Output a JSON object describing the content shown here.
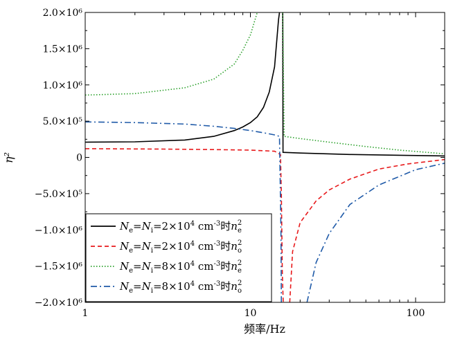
{
  "chart_data": {
    "type": "line",
    "xlabel": "频率/Hz",
    "ylabel": "η²",
    "xscale": "log",
    "xlim": [
      1,
      150
    ],
    "ylim": [
      -2000000,
      2000000
    ],
    "x_ticks": [
      {
        "value": 1,
        "label": "1"
      },
      {
        "value": 10,
        "label": "10"
      },
      {
        "value": 100,
        "label": "100"
      }
    ],
    "y_ticks": [
      {
        "value": 2000000,
        "label": "2.0×10⁶"
      },
      {
        "value": 1500000,
        "label": "1.5×10⁶"
      },
      {
        "value": 1000000,
        "label": "1.0×10⁶"
      },
      {
        "value": 500000,
        "label": "5.0×10⁵"
      },
      {
        "value": 0,
        "label": "0"
      },
      {
        "value": -500000,
        "label": "−5.0×10⁵"
      },
      {
        "value": -1000000,
        "label": "−1.0×10⁶"
      },
      {
        "value": -1500000,
        "label": "−1.5×10⁶"
      },
      {
        "value": -2000000,
        "label": "−2.0×10⁶"
      }
    ],
    "grid": false,
    "legend_position": "bottom-left",
    "series": [
      {
        "name": "Ne=Ni=2×10⁴ cm⁻³时ne²",
        "color": "#000000",
        "dash": "solid",
        "points": [
          [
            1,
            210000
          ],
          [
            2,
            215000
          ],
          [
            4,
            240000
          ],
          [
            6,
            290000
          ],
          [
            8,
            370000
          ],
          [
            9,
            420000
          ],
          [
            10,
            480000
          ],
          [
            11,
            560000
          ],
          [
            12,
            690000
          ],
          [
            13,
            900000
          ],
          [
            14,
            1250000
          ],
          [
            14.8,
            1900000
          ],
          [
            15.0,
            2000000
          ]
        ],
        "branch2": [
          [
            15.7,
            2000000
          ],
          [
            15.75,
            70000
          ],
          [
            20,
            60000
          ],
          [
            40,
            40000
          ],
          [
            80,
            30000
          ],
          [
            150,
            20000
          ]
        ]
      },
      {
        "name": "Ne=Ni=2×10⁴ cm⁻³时no²",
        "color": "#e8191b",
        "dash": "dash",
        "points": [
          [
            1,
            120000
          ],
          [
            3,
            115000
          ],
          [
            6,
            108000
          ],
          [
            10,
            100000
          ],
          [
            14,
            85000
          ],
          [
            15.2,
            40000
          ],
          [
            15.4,
            -500000
          ],
          [
            15.6,
            -1600000
          ],
          [
            15.8,
            -2000000
          ]
        ],
        "branch2": [
          [
            17.3,
            -2000000
          ],
          [
            18,
            -1300000
          ],
          [
            20,
            -900000
          ],
          [
            25,
            -600000
          ],
          [
            30,
            -450000
          ],
          [
            40,
            -300000
          ],
          [
            60,
            -160000
          ],
          [
            90,
            -90000
          ],
          [
            150,
            -30000
          ]
        ]
      },
      {
        "name": "Ne=Ni=8×10⁴ cm⁻³时ne²",
        "color": "#2aa02a",
        "dash": "dot",
        "points": [
          [
            1,
            860000
          ],
          [
            2,
            880000
          ],
          [
            4,
            960000
          ],
          [
            6,
            1080000
          ],
          [
            8,
            1290000
          ],
          [
            9,
            1480000
          ],
          [
            10,
            1690000
          ],
          [
            11,
            2000000
          ]
        ],
        "branch2": [
          [
            15.7,
            2000000
          ],
          [
            16,
            290000
          ],
          [
            20,
            260000
          ],
          [
            30,
            210000
          ],
          [
            50,
            150000
          ],
          [
            80,
            100000
          ],
          [
            150,
            50000
          ]
        ]
      },
      {
        "name": "Ne=Ni=8×10⁴ cm⁻³时no²",
        "color": "#1f5aa8",
        "dash": "dashdot",
        "points": [
          [
            1,
            490000
          ],
          [
            2,
            480000
          ],
          [
            4,
            460000
          ],
          [
            6,
            430000
          ],
          [
            8,
            400000
          ],
          [
            10,
            370000
          ],
          [
            12,
            340000
          ],
          [
            14,
            310000
          ],
          [
            15.0,
            290000
          ],
          [
            15.3,
            -1000000
          ],
          [
            15.4,
            -2000000
          ]
        ],
        "branch2": [
          [
            22,
            -2000000
          ],
          [
            25,
            -1450000
          ],
          [
            30,
            -1050000
          ],
          [
            40,
            -650000
          ],
          [
            60,
            -380000
          ],
          [
            100,
            -170000
          ],
          [
            150,
            -80000
          ]
        ]
      }
    ]
  },
  "legend": {
    "items": [
      {
        "prefix": "N",
        "sub1": "e",
        "mid": "=N",
        "sub2": "i",
        "eq": "=",
        "num": "2×10",
        "exp": "4",
        "unit": " cm",
        "unitexp": "-3",
        "tail": "时n",
        "tailsub": "e",
        "tailsup": "2"
      },
      {
        "prefix": "N",
        "sub1": "e",
        "mid": "=N",
        "sub2": "i",
        "eq": "=",
        "num": "2×10",
        "exp": "4",
        "unit": " cm",
        "unitexp": "-3",
        "tail": "时n",
        "tailsub": "o",
        "tailsup": "2"
      },
      {
        "prefix": "N",
        "sub1": "e",
        "mid": "=N",
        "sub2": "i",
        "eq": "=",
        "num": "8×10",
        "exp": "4",
        "unit": " cm",
        "unitexp": "-3",
        "tail": "时n",
        "tailsub": "e",
        "tailsup": "2"
      },
      {
        "prefix": "N",
        "sub1": "e",
        "mid": "=N",
        "sub2": "i",
        "eq": "=",
        "num": "8×10",
        "exp": "4",
        "unit": " cm",
        "unitexp": "-3",
        "tail": "时n",
        "tailsub": "o",
        "tailsup": "2"
      }
    ]
  }
}
